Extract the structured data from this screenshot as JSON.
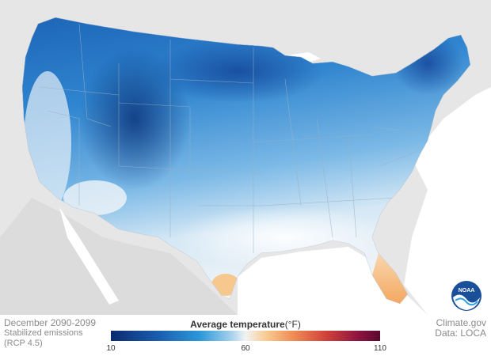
{
  "caption": {
    "period": "December 2090-2099",
    "scenario_line1": "Stabilized emissions",
    "scenario_line2": "(RCP 4.5)"
  },
  "legend": {
    "title": "Average temperature",
    "unit": "(°F)",
    "min_label": "10",
    "mid_label": "60",
    "max_label": "110",
    "scale": [
      10,
      60,
      110
    ],
    "colors": {
      "cold": "#0b2a6f",
      "mid": "#f2f2f2",
      "hot": "#5a0a2e"
    }
  },
  "credits": {
    "source": "Climate.gov",
    "data": "Data: LOCA"
  },
  "logo": {
    "text": "NOAA"
  },
  "colors": {
    "background_land": "#e6e6e6",
    "water": "#ffffff",
    "deep_cold": "#133d86",
    "cold": "#1f6cc0",
    "cool": "#3d93d8",
    "mild": "#c9e2f3",
    "warm": "#f7c489"
  }
}
